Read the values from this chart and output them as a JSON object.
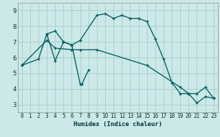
{
  "title": "",
  "xlabel": "Humidex (Indice chaleur)",
  "bg_color": "#cce8e8",
  "grid_color": "#aacfcf",
  "line_color": "#006060",
  "xlim": [
    -0.5,
    23.5
  ],
  "ylim": [
    2.5,
    9.5
  ],
  "xticks": [
    0,
    1,
    2,
    3,
    4,
    5,
    6,
    7,
    8,
    9,
    10,
    11,
    12,
    13,
    14,
    15,
    16,
    17,
    18,
    19,
    20,
    21,
    22,
    23
  ],
  "yticks": [
    3,
    4,
    5,
    6,
    7,
    8,
    9
  ],
  "line1_x": [
    0,
    2,
    3,
    4,
    5,
    6,
    7,
    9,
    10,
    11,
    12,
    13,
    14,
    15,
    16,
    17,
    18,
    19,
    20,
    21,
    22,
    23
  ],
  "line1_y": [
    5.5,
    5.9,
    7.5,
    7.7,
    7.0,
    6.8,
    7.1,
    8.7,
    8.8,
    8.5,
    8.7,
    8.5,
    8.5,
    8.3,
    7.2,
    5.9,
    4.4,
    3.7,
    3.7,
    3.1,
    3.5,
    3.4
  ],
  "line2_x": [
    3,
    4,
    5,
    6,
    7,
    7.2,
    8
  ],
  "line2_y": [
    7.5,
    5.8,
    7.0,
    6.8,
    4.3,
    4.3,
    5.2
  ],
  "line3_x": [
    0,
    3,
    4,
    6,
    7,
    9,
    15,
    19,
    20,
    21,
    22,
    23
  ],
  "line3_y": [
    5.5,
    7.1,
    6.6,
    6.5,
    6.5,
    6.5,
    5.5,
    4.1,
    3.7,
    3.7,
    4.1,
    3.4
  ]
}
